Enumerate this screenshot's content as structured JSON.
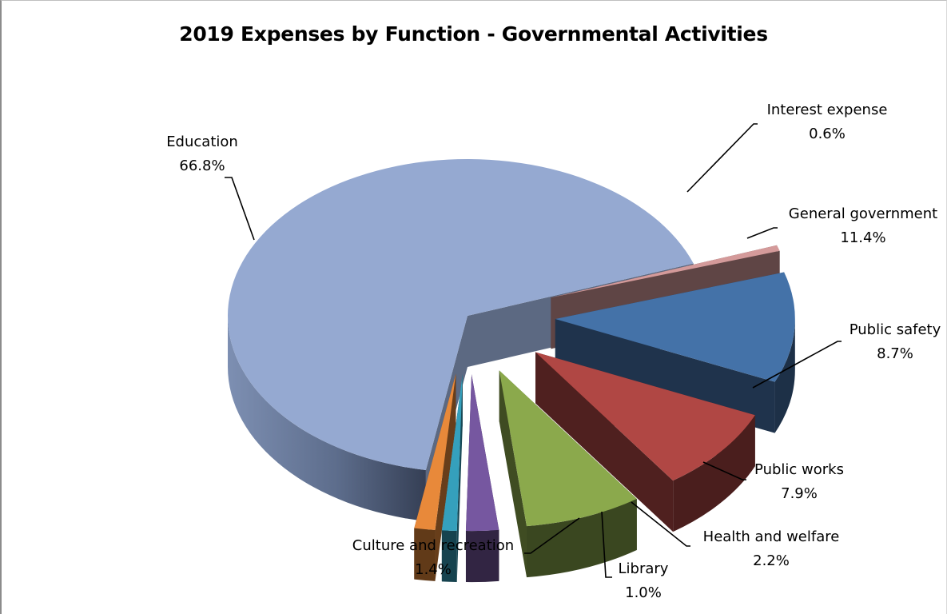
{
  "chart_data": {
    "type": "pie",
    "title": "2019 Expenses by Function - Governmental Activities",
    "slices": [
      {
        "label": "Education",
        "value": 66.8,
        "value_label": "66.8%",
        "color": "#95a9d1",
        "exploded": false
      },
      {
        "label": "Interest expense",
        "value": 0.6,
        "value_label": "0.6%",
        "color": "#d49a9a",
        "exploded": true
      },
      {
        "label": "General government",
        "value": 11.4,
        "value_label": "11.4%",
        "color": "#4472a8",
        "exploded": true
      },
      {
        "label": "Public safety",
        "value": 8.7,
        "value_label": "8.7%",
        "color": "#b04744",
        "exploded": true
      },
      {
        "label": "Public works",
        "value": 7.9,
        "value_label": "7.9%",
        "color": "#8ba94c",
        "exploded": true
      },
      {
        "label": "Health and welfare",
        "value": 2.2,
        "value_label": "2.2%",
        "color": "#7657a0",
        "exploded": true
      },
      {
        "label": "Library",
        "value": 1.0,
        "value_label": "1.0%",
        "color": "#35a0bc",
        "exploded": true
      },
      {
        "label": "Culture and recreation",
        "value": 1.4,
        "value_label": "1.4%",
        "color": "#e8893a",
        "exploded": true
      }
    ],
    "style": "3d-exploded",
    "legend": "none"
  }
}
